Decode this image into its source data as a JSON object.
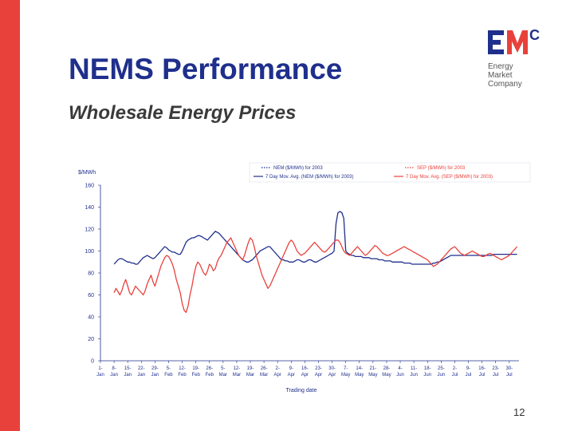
{
  "slide": {
    "title": "NEMS Performance",
    "subtitle": "Wholesale Energy Prices",
    "page_number": "12"
  },
  "logo": {
    "mark_text": "EMC",
    "line1": "Energy",
    "line2": "Market",
    "line3": "Company",
    "mark_color": "#1f2f8c",
    "accent_color": "#e8413c"
  },
  "colors": {
    "accent_bar": "#e8413c",
    "nem_series": "#1f2f8c",
    "sep_series": "#e8413c"
  },
  "chart_data": {
    "type": "line",
    "title": "",
    "xlabel": "Trading date",
    "ylabel": "$/MWh",
    "ylim": [
      0,
      160
    ],
    "yticks": [
      0,
      20,
      40,
      60,
      80,
      100,
      120,
      140,
      160
    ],
    "grid": false,
    "legend_position": "top",
    "legend": [
      "NEM ($/MWh) for 2003",
      "SEP ($/MWh) for 2003",
      "7 Day Mov. Avg. (NEM ($/MWh) for 2003)",
      "7 Day Mov. Avg. (SEP ($/MWh) for 2003)"
    ],
    "x_tick_labels": [
      [
        "1-",
        "Jan"
      ],
      [
        "8-",
        "Jan"
      ],
      [
        "15-",
        "Jan"
      ],
      [
        "22-",
        "Jan"
      ],
      [
        "29-",
        "Jan"
      ],
      [
        "5-",
        "Feb"
      ],
      [
        "12-",
        "Feb"
      ],
      [
        "19-",
        "Feb"
      ],
      [
        "26-",
        "Feb"
      ],
      [
        "5-",
        "Mar"
      ],
      [
        "12-",
        "Mar"
      ],
      [
        "19-",
        "Mar"
      ],
      [
        "26-",
        "Mar"
      ],
      [
        "2-",
        "Apr"
      ],
      [
        "9-",
        "Apr"
      ],
      [
        "16-",
        "Apr"
      ],
      [
        "23-",
        "Apr"
      ],
      [
        "30-",
        "Apr"
      ],
      [
        "7-",
        "May"
      ],
      [
        "14-",
        "May"
      ],
      [
        "21-",
        "May"
      ],
      [
        "28-",
        "May"
      ],
      [
        "4-",
        "Jun"
      ],
      [
        "11-",
        "Jun"
      ],
      [
        "18-",
        "Jun"
      ],
      [
        "25-",
        "Jun"
      ],
      [
        "2-",
        "Jul"
      ],
      [
        "9-",
        "Jul"
      ],
      [
        "16-",
        "Jul"
      ],
      [
        "23-",
        "Jul"
      ],
      [
        "30-",
        "Jul"
      ]
    ],
    "series": [
      {
        "name": "7 Day Mov. Avg. (NEM ($/MWh) for 2003)",
        "color": "#1f2f8c",
        "x": [
          7,
          8,
          9,
          10,
          11,
          12,
          13,
          14,
          15,
          16,
          17,
          18,
          19,
          20,
          21,
          22,
          23,
          24,
          25,
          26,
          27,
          28,
          29,
          30,
          31,
          32,
          33,
          34,
          35,
          36,
          37,
          38,
          39,
          40,
          41,
          42,
          43,
          44,
          45,
          46,
          47,
          48,
          49,
          50,
          51,
          52,
          53,
          54,
          55,
          56,
          57,
          58,
          59,
          60,
          61,
          62,
          63,
          64,
          65,
          66,
          67,
          68,
          69,
          70,
          71,
          72,
          73,
          74,
          75,
          76,
          77,
          78,
          79,
          80,
          81,
          82,
          83,
          84,
          85,
          86,
          87,
          88,
          89,
          90,
          91,
          92,
          93,
          94,
          95,
          96,
          97,
          98,
          99,
          100,
          101,
          102,
          103,
          104,
          105,
          106,
          107,
          108,
          109,
          110,
          111,
          112,
          113,
          114,
          115,
          116,
          117,
          118,
          119,
          120,
          121,
          122,
          123,
          124,
          125,
          126,
          127,
          128,
          129,
          130,
          131,
          132,
          133,
          134,
          135,
          136,
          137,
          138,
          139,
          140,
          141,
          142,
          143,
          144,
          145,
          146,
          147,
          148,
          149,
          150,
          151,
          152,
          153,
          154,
          155,
          156,
          157,
          158,
          159,
          160,
          161,
          162,
          163,
          164,
          165,
          166,
          167,
          168,
          169,
          170,
          171,
          172,
          173,
          174,
          175,
          176,
          177,
          178,
          179,
          180,
          181,
          182,
          183,
          184,
          185,
          186,
          187,
          188,
          189,
          190,
          191,
          192,
          193,
          194,
          195,
          196,
          197,
          198,
          199,
          200,
          201,
          202,
          203,
          204,
          205,
          206,
          207,
          208,
          209,
          210,
          211,
          212,
          213,
          214
        ],
        "y": [
          88,
          90,
          92,
          93,
          93,
          92,
          91,
          90,
          90,
          89,
          89,
          88,
          88,
          90,
          92,
          94,
          95,
          96,
          95,
          94,
          93,
          94,
          96,
          98,
          100,
          102,
          104,
          103,
          101,
          100,
          99,
          99,
          98,
          97,
          97,
          100,
          104,
          108,
          110,
          111,
          112,
          112,
          113,
          114,
          114,
          113,
          112,
          111,
          110,
          112,
          114,
          116,
          118,
          117,
          116,
          114,
          112,
          110,
          108,
          106,
          104,
          102,
          100,
          98,
          96,
          94,
          92,
          91,
          90,
          90,
          91,
          92,
          94,
          96,
          98,
          100,
          101,
          102,
          103,
          104,
          104,
          102,
          100,
          98,
          96,
          94,
          92,
          92,
          91,
          91,
          90,
          90,
          90,
          91,
          92,
          92,
          91,
          90,
          90,
          91,
          92,
          92,
          91,
          90,
          90,
          91,
          92,
          93,
          94,
          95,
          96,
          97,
          98,
          100,
          125,
          135,
          136,
          135,
          130,
          100,
          98,
          97,
          96,
          96,
          95,
          95,
          95,
          95,
          94,
          94,
          94,
          94,
          93,
          93,
          93,
          93,
          92,
          92,
          92,
          91,
          91,
          91,
          91,
          90,
          90,
          90,
          90,
          90,
          90,
          89,
          89,
          89,
          89,
          88,
          88,
          88,
          88,
          88,
          88,
          88,
          88,
          88,
          88,
          88,
          89,
          89,
          90,
          90,
          91,
          92,
          93,
          94,
          95,
          96,
          96,
          96,
          96,
          96,
          96,
          96,
          96,
          96,
          96,
          96,
          96,
          96,
          96,
          96,
          96,
          96,
          96,
          96,
          96,
          96,
          96,
          97,
          97,
          97,
          97,
          97,
          97,
          97,
          97,
          97,
          97,
          97,
          97,
          97
        ]
      },
      {
        "name": "7 Day Mov. Avg. (SEP ($/MWh) for 2003)",
        "color": "#e8413c",
        "x": [
          7,
          8,
          9,
          10,
          11,
          12,
          13,
          14,
          15,
          16,
          17,
          18,
          19,
          20,
          21,
          22,
          23,
          24,
          25,
          26,
          27,
          28,
          29,
          30,
          31,
          32,
          33,
          34,
          35,
          36,
          37,
          38,
          39,
          40,
          41,
          42,
          43,
          44,
          45,
          46,
          47,
          48,
          49,
          50,
          51,
          52,
          53,
          54,
          55,
          56,
          57,
          58,
          59,
          60,
          61,
          62,
          63,
          64,
          65,
          66,
          67,
          68,
          69,
          70,
          71,
          72,
          73,
          74,
          75,
          76,
          77,
          78,
          79,
          80,
          81,
          82,
          83,
          84,
          85,
          86,
          87,
          88,
          89,
          90,
          91,
          92,
          93,
          94,
          95,
          96,
          97,
          98,
          99,
          100,
          101,
          102,
          103,
          104,
          105,
          106,
          107,
          108,
          109,
          110,
          111,
          112,
          113,
          114,
          115,
          116,
          117,
          118,
          119,
          120,
          121,
          122,
          123,
          124,
          125,
          126,
          127,
          128,
          129,
          130,
          131,
          132,
          133,
          134,
          135,
          136,
          137,
          138,
          139,
          140,
          141,
          142,
          143,
          144,
          145,
          146,
          147,
          148,
          149,
          150,
          151,
          152,
          153,
          154,
          155,
          156,
          157,
          158,
          159,
          160,
          161,
          162,
          163,
          164,
          165,
          166,
          167,
          168,
          169,
          170,
          171,
          172,
          173,
          174,
          175,
          176,
          177,
          178,
          179,
          180,
          181,
          182,
          183,
          184,
          185,
          186,
          187,
          188,
          189,
          190,
          191,
          192,
          193,
          194,
          195,
          196,
          197,
          198,
          199,
          200,
          201,
          202,
          203,
          204,
          205,
          206,
          207,
          208,
          209,
          210,
          211,
          212,
          213,
          214
        ],
        "y": [
          62,
          66,
          63,
          60,
          64,
          70,
          74,
          68,
          62,
          60,
          64,
          68,
          66,
          64,
          62,
          60,
          64,
          70,
          74,
          78,
          72,
          68,
          74,
          80,
          86,
          90,
          94,
          96,
          95,
          92,
          88,
          82,
          74,
          68,
          62,
          52,
          46,
          44,
          50,
          60,
          68,
          78,
          86,
          90,
          88,
          84,
          80,
          78,
          82,
          88,
          86,
          82,
          84,
          90,
          94,
          96,
          100,
          104,
          108,
          110,
          112,
          108,
          104,
          100,
          96,
          94,
          92,
          96,
          102,
          108,
          112,
          110,
          104,
          96,
          90,
          84,
          78,
          74,
          70,
          66,
          68,
          72,
          76,
          80,
          84,
          88,
          92,
          96,
          100,
          104,
          108,
          110,
          108,
          104,
          100,
          98,
          96,
          97,
          98,
          100,
          102,
          104,
          106,
          108,
          106,
          104,
          102,
          100,
          99,
          100,
          102,
          104,
          106,
          108,
          110,
          110,
          108,
          104,
          100,
          98,
          97,
          96,
          98,
          100,
          102,
          104,
          102,
          100,
          98,
          96,
          97,
          99,
          101,
          103,
          105,
          104,
          102,
          100,
          98,
          97,
          96,
          96,
          97,
          98,
          99,
          100,
          101,
          102,
          103,
          104,
          103,
          102,
          101,
          100,
          99,
          98,
          97,
          96,
          95,
          94,
          93,
          92,
          90,
          88,
          86,
          87,
          88,
          90,
          92,
          94,
          96,
          98,
          100,
          102,
          103,
          104,
          102,
          100,
          98,
          97,
          96,
          97,
          98,
          99,
          100,
          99,
          98,
          97,
          96,
          95,
          95,
          96,
          97,
          98,
          97,
          96,
          95,
          94,
          93,
          92,
          93,
          94,
          95,
          96,
          98,
          100,
          102,
          104
        ]
      }
    ]
  }
}
